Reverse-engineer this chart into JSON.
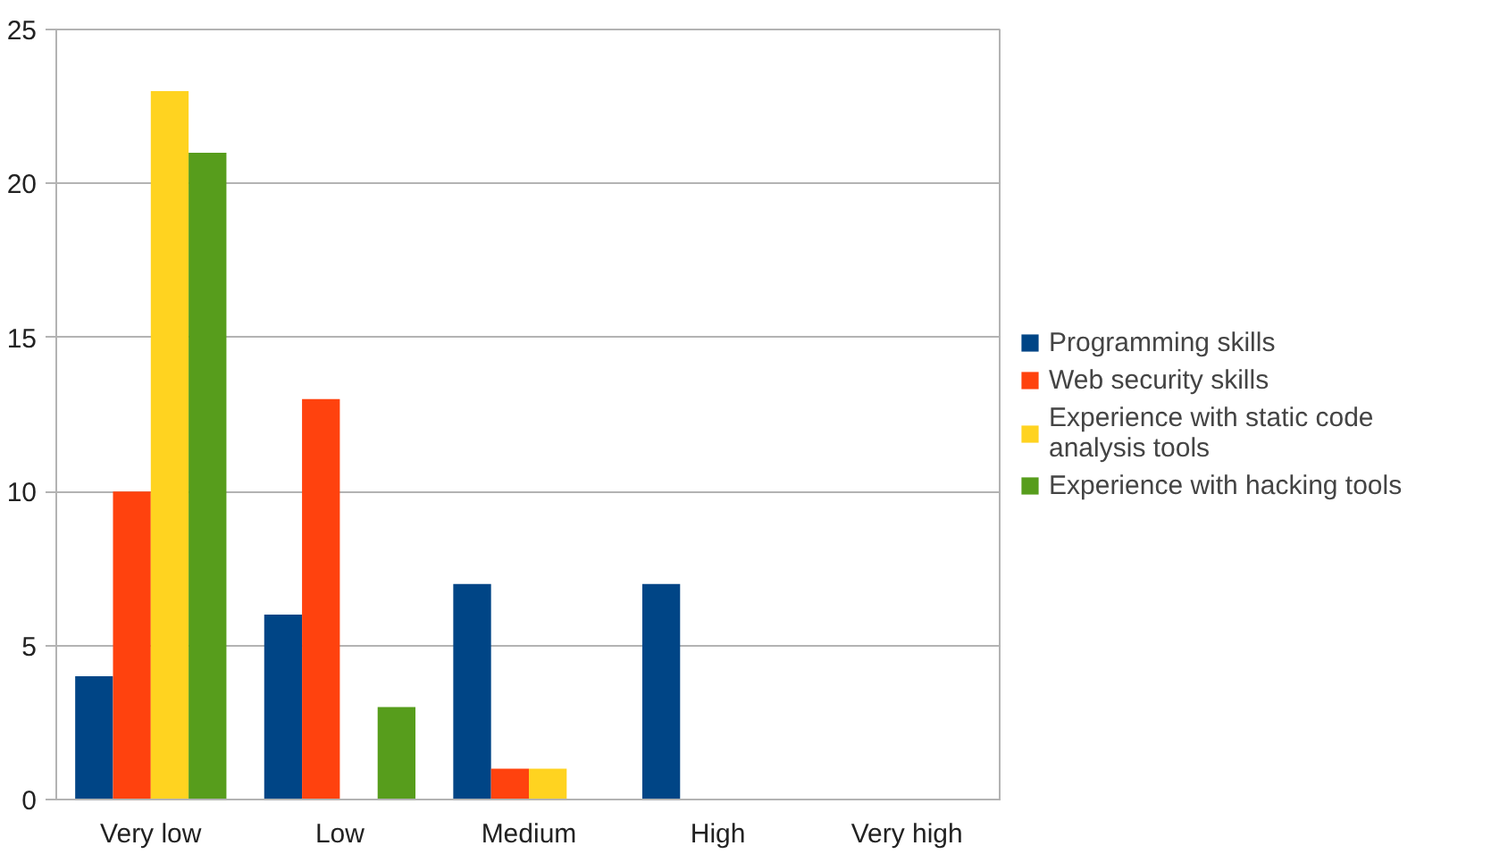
{
  "chart_data": {
    "type": "bar",
    "categories": [
      "Very low",
      "Low",
      "Medium",
      "High",
      "Very high"
    ],
    "series": [
      {
        "name": "Programming skills",
        "color": "#004586",
        "values": [
          4,
          6,
          7,
          7,
          0
        ]
      },
      {
        "name": "Web security skills",
        "color": "#ff420e",
        "values": [
          10,
          13,
          1,
          0,
          0
        ]
      },
      {
        "name": "Experience with static code analysis tools",
        "color": "#ffd320",
        "values": [
          23,
          0,
          1,
          0,
          0
        ]
      },
      {
        "name": "Experience with hacking tools",
        "color": "#579d1c",
        "values": [
          21,
          3,
          0,
          0,
          0
        ]
      }
    ],
    "ylim": [
      0,
      25
    ],
    "yticks": [
      0,
      5,
      10,
      15,
      20,
      25
    ],
    "grid": "y",
    "legend": "right"
  }
}
